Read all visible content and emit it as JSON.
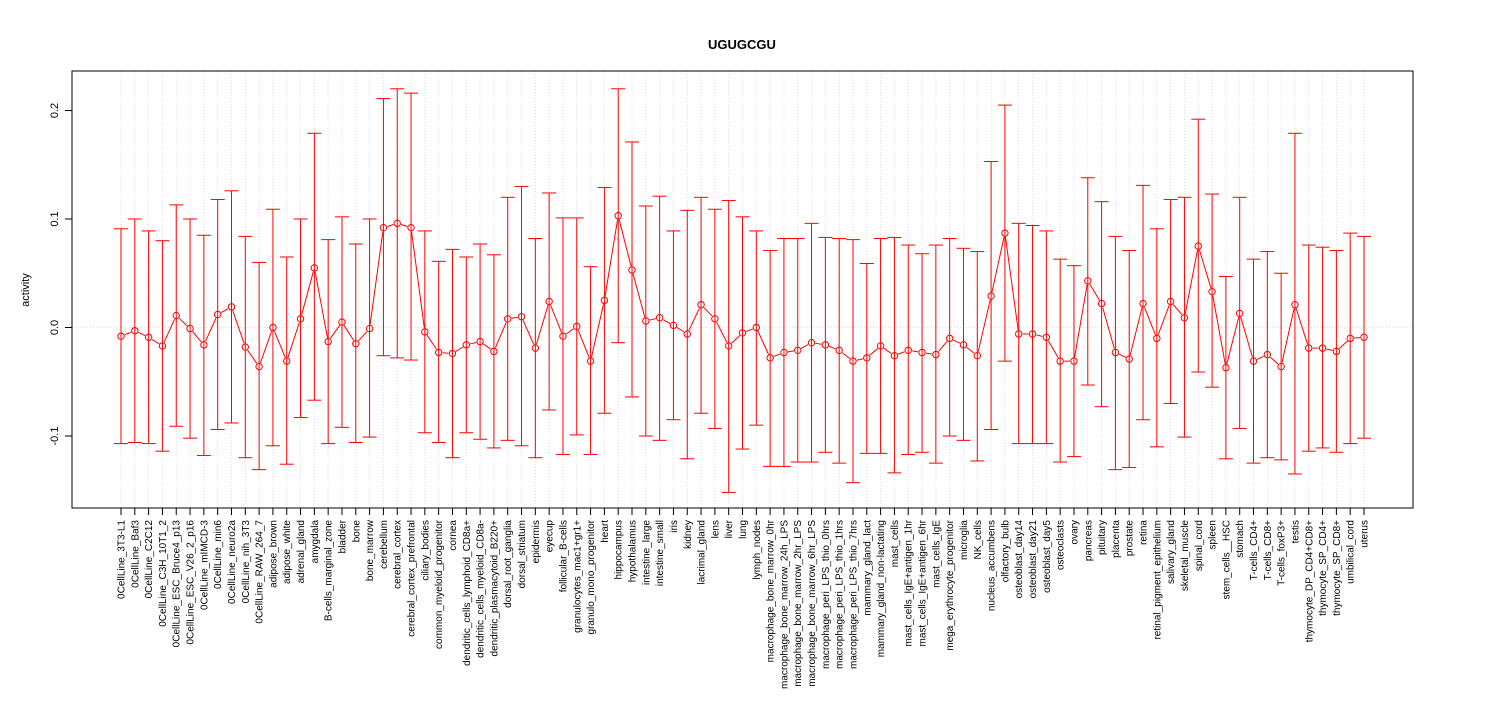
{
  "chart_data": {
    "type": "line",
    "title": "UGUGCGU",
    "xlabel": "",
    "ylabel": "activity",
    "ylim": [
      -0.16,
      0.23
    ],
    "yticks": [
      -0.1,
      0.0,
      0.1,
      0.2
    ],
    "ytick_labels": [
      "-0.1",
      "0.0",
      "0.1",
      "0.2"
    ],
    "grid": true,
    "color": "#ff0000",
    "categories": [
      "0CellLine_3T3-L1",
      "0CellLine_Baf3",
      "0CellLine_C2C12",
      "0CellLine_C3H_10T1_2",
      "0CellLine_ESC_Bruce4_p13",
      "0CellLine_ESC_V26_2_p16",
      "0CellLine_mIMCD-3",
      "0CellLine_min6",
      "0CellLine_neuro2a",
      "0CellLine_nih_3T3",
      "0CellLine_RAW_264_7",
      "adipose_brown",
      "adipose_white",
      "adrenal_gland",
      "amygdala",
      "B-cells_marginal_zone",
      "bladder",
      "bone",
      "bone_marrow",
      "cerebellum",
      "cerebral_cortex",
      "cerebral_cortex_prefrontal",
      "ciliary_bodies",
      "common_myeloid_progenitor",
      "cornea",
      "dendritic_cells_lymphoid_CD8a+",
      "dendritic_cells_myeloid_CD8a-",
      "dendritic_plasmacytoid_B220+",
      "dorsal_root_ganglia",
      "dorsal_striatum",
      "epidermis",
      "eyecup",
      "follicular_B-cells",
      "granulocytes_mac1+gr1+",
      "granulo_mono_progenitor",
      "heart",
      "hippocampus",
      "hypothalamus",
      "intestine_large",
      "intestine_small",
      "iris",
      "kidney",
      "lacrimal_gland",
      "lens",
      "liver",
      "lung",
      "lymph_nodes",
      "macrophage_bone_marrow_0hr",
      "macrophage_bone_marrow_24h_LPS",
      "macrophage_bone_marrow_2hr_LPS",
      "macrophage_bone_marrow_6hr_LPS",
      "macrophage_peri_LPS_thio_0hrs",
      "macrophage_peri_LPS_thio_1hrs",
      "macrophage_peri_LPS_thio_7hrs",
      "mammary_gland_lact",
      "mammary_gland_non-lactating",
      "mast_cells",
      "mast_cells_IgE+antigen_1hr",
      "mast_cells_IgE+antigen_6hr",
      "mast_cells_IgE",
      "mega_erythrocyte_progenitor",
      "microglia",
      "NK_cells",
      "nucleus_accumbens",
      "olfactory_bulb",
      "osteoblast_day14",
      "osteoblast_day21",
      "osteoblast_day5",
      "osteoclasts",
      "ovary",
      "pancreas",
      "pituitary",
      "placenta",
      "prostate",
      "retina",
      "retinal_pigment_epithelium",
      "salivary_gland",
      "skeletal_muscle",
      "spinal_cord",
      "spleen",
      "stem_cells__HSC",
      "stomach",
      "T-cells_CD4+",
      "T-cells_CD8+",
      "T-cells_foxP3+",
      "testis",
      "thymocyte_DP_CD4+CD8+",
      "thymocyte_SP_CD4+",
      "thymocyte_SP_CD8+",
      "umbilical_cord",
      "uterus"
    ],
    "values": [
      -0.008,
      -0.003,
      -0.009,
      -0.017,
      0.011,
      -0.001,
      -0.016,
      0.012,
      0.019,
      -0.018,
      -0.036,
      0.0,
      -0.031,
      0.008,
      0.055,
      -0.013,
      0.005,
      -0.015,
      -0.001,
      0.092,
      0.096,
      0.092,
      -0.004,
      -0.023,
      -0.024,
      -0.016,
      -0.013,
      -0.022,
      0.008,
      0.01,
      -0.019,
      0.024,
      -0.008,
      0.001,
      -0.031,
      0.025,
      0.103,
      0.053,
      0.006,
      0.009,
      0.002,
      -0.006,
      0.021,
      0.008,
      -0.017,
      -0.005,
      0.0,
      -0.028,
      -0.023,
      -0.021,
      -0.014,
      -0.016,
      -0.021,
      -0.031,
      -0.028,
      -0.017,
      -0.026,
      -0.021,
      -0.023,
      -0.025,
      -0.01,
      -0.016,
      -0.026,
      0.029,
      0.087,
      -0.006,
      -0.006,
      -0.009,
      -0.031,
      -0.031,
      0.043,
      0.022,
      -0.023,
      -0.029,
      0.022,
      -0.01,
      0.024,
      0.009,
      0.075,
      0.033,
      -0.037,
      0.013,
      -0.031,
      -0.025,
      -0.036,
      0.021,
      -0.019,
      -0.019,
      -0.022,
      -0.01,
      -0.009
    ],
    "upper": [
      0.091,
      0.1,
      0.089,
      0.08,
      0.113,
      0.1,
      0.085,
      0.118,
      0.126,
      0.084,
      0.06,
      0.109,
      0.065,
      0.1,
      0.179,
      0.081,
      0.102,
      0.077,
      0.1,
      0.211,
      0.22,
      0.216,
      0.089,
      0.061,
      0.072,
      0.065,
      0.077,
      0.067,
      0.12,
      0.13,
      0.082,
      0.124,
      0.101,
      0.101,
      0.056,
      0.129,
      0.22,
      0.171,
      0.112,
      0.121,
      0.089,
      0.108,
      0.12,
      0.109,
      0.117,
      0.102,
      0.089,
      0.071,
      0.082,
      0.082,
      0.096,
      0.083,
      0.082,
      0.081,
      0.059,
      0.082,
      0.083,
      0.076,
      0.068,
      0.076,
      0.082,
      0.073,
      0.07,
      0.153,
      0.205,
      0.096,
      0.094,
      0.089,
      0.063,
      0.057,
      0.138,
      0.116,
      0.084,
      0.071,
      0.131,
      0.091,
      0.118,
      0.12,
      0.192,
      0.123,
      0.047,
      0.12,
      0.063,
      0.07,
      0.05,
      0.179,
      0.076,
      0.074,
      0.071,
      0.087,
      0.084
    ],
    "lower": [
      -0.107,
      -0.106,
      -0.107,
      -0.114,
      -0.091,
      -0.102,
      -0.118,
      -0.094,
      -0.088,
      -0.12,
      -0.131,
      -0.109,
      -0.126,
      -0.083,
      -0.067,
      -0.107,
      -0.092,
      -0.106,
      -0.101,
      -0.026,
      -0.028,
      -0.03,
      -0.097,
      -0.106,
      -0.12,
      -0.097,
      -0.103,
      -0.111,
      -0.104,
      -0.109,
      -0.12,
      -0.076,
      -0.117,
      -0.099,
      -0.117,
      -0.079,
      -0.014,
      -0.064,
      -0.1,
      -0.104,
      -0.085,
      -0.121,
      -0.079,
      -0.093,
      -0.152,
      -0.112,
      -0.09,
      -0.128,
      -0.128,
      -0.124,
      -0.124,
      -0.115,
      -0.125,
      -0.143,
      -0.116,
      -0.116,
      -0.134,
      -0.117,
      -0.115,
      -0.125,
      -0.1,
      -0.104,
      -0.123,
      -0.094,
      -0.031,
      -0.107,
      -0.107,
      -0.107,
      -0.124,
      -0.119,
      -0.053,
      -0.073,
      -0.131,
      -0.129,
      -0.085,
      -0.11,
      -0.07,
      -0.101,
      -0.041,
      -0.055,
      -0.121,
      -0.093,
      -0.125,
      -0.12,
      -0.122,
      -0.135,
      -0.114,
      -0.111,
      -0.115,
      -0.107,
      -0.102
    ]
  }
}
